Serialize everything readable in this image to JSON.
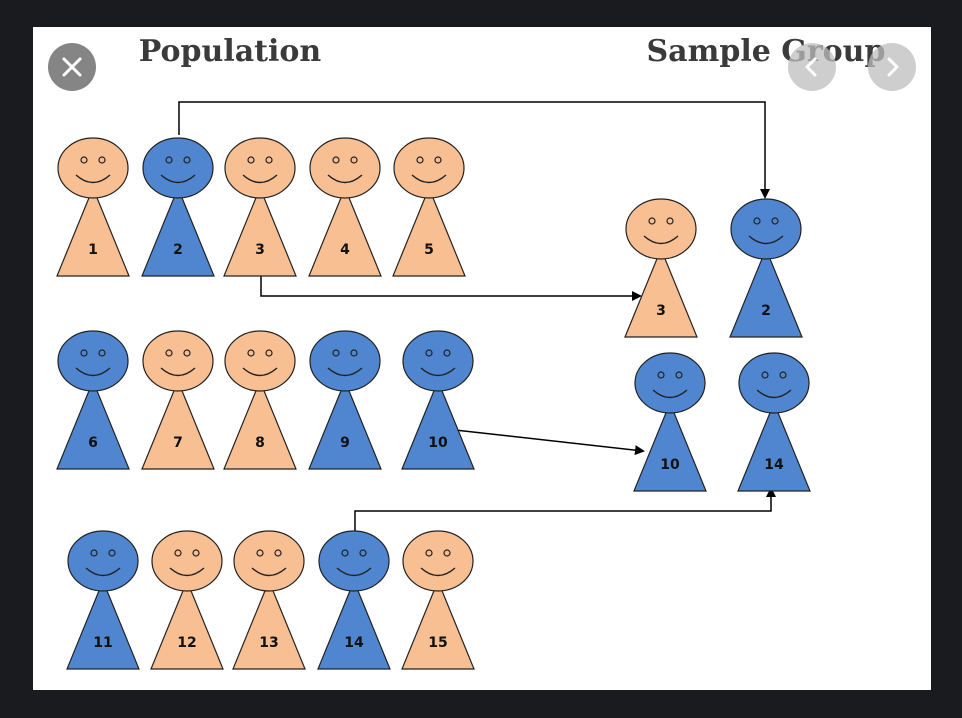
{
  "viewer": {
    "close_icon": "close-icon",
    "prev_icon": "chevron-left-icon",
    "next_icon": "chevron-right-icon"
  },
  "figure": {
    "left_title": "Population",
    "right_title": "Sample Group",
    "colors": {
      "orange": "#f8bf92",
      "blue": "#4f86cf",
      "outline": "#222222",
      "arrow": "#000000"
    },
    "population": [
      {
        "id": "1",
        "color": "orange"
      },
      {
        "id": "2",
        "color": "blue"
      },
      {
        "id": "3",
        "color": "orange"
      },
      {
        "id": "4",
        "color": "orange"
      },
      {
        "id": "5",
        "color": "orange"
      },
      {
        "id": "6",
        "color": "blue"
      },
      {
        "id": "7",
        "color": "orange"
      },
      {
        "id": "8",
        "color": "orange"
      },
      {
        "id": "9",
        "color": "blue"
      },
      {
        "id": "10",
        "color": "blue"
      },
      {
        "id": "11",
        "color": "blue"
      },
      {
        "id": "12",
        "color": "orange"
      },
      {
        "id": "13",
        "color": "orange"
      },
      {
        "id": "14",
        "color": "blue"
      },
      {
        "id": "15",
        "color": "orange"
      }
    ],
    "sample": [
      {
        "id": "3",
        "color": "orange"
      },
      {
        "id": "2",
        "color": "blue"
      },
      {
        "id": "10",
        "color": "blue"
      },
      {
        "id": "14",
        "color": "blue"
      }
    ]
  }
}
